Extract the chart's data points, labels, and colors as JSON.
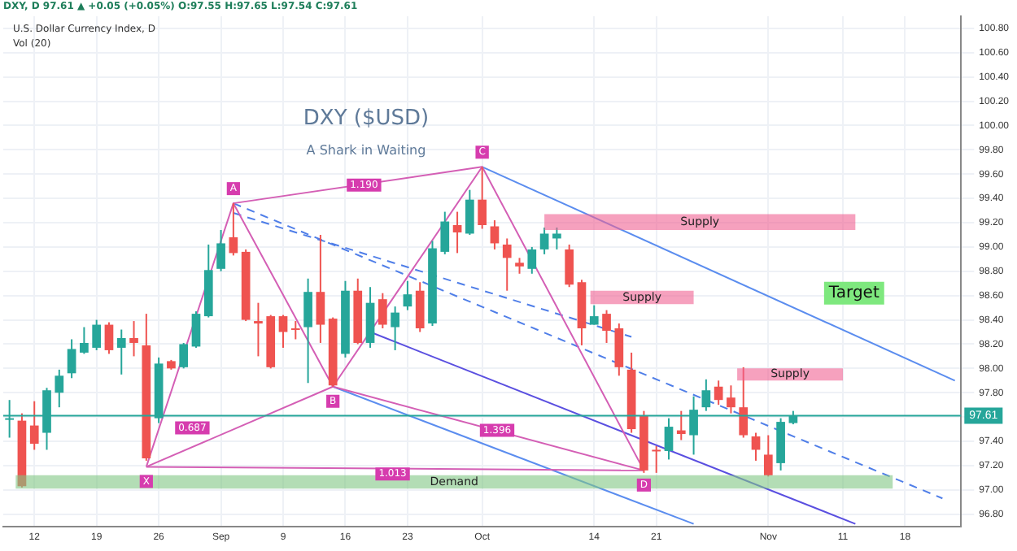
{
  "chart_data": {
    "type": "candlestick",
    "title": "DXY ($USD)",
    "subtitle": "A Shark in Waiting",
    "categories": [
      null,
      null,
      "12",
      null,
      null,
      null,
      null,
      "19",
      null,
      null,
      null,
      null,
      "26",
      null,
      null,
      null,
      null,
      "Sep",
      null,
      null,
      null,
      null,
      "9",
      null,
      null,
      null,
      null,
      "16",
      null,
      null,
      null,
      null,
      "23",
      null,
      null,
      null,
      null,
      null,
      "Oct",
      null,
      null,
      null,
      null,
      null,
      null,
      null,
      null,
      "14",
      null,
      null,
      null,
      null,
      "21",
      null,
      null,
      null,
      null,
      null,
      null,
      null,
      null,
      "Nov",
      null,
      null,
      null,
      null,
      null,
      "11",
      null,
      null,
      null,
      null,
      "18",
      null,
      null,
      null,
      null
    ],
    "ohlc": [
      [
        97.58,
        97.74,
        97.43,
        97.59
      ],
      [
        97.57,
        97.63,
        97.02,
        97.03
      ],
      [
        97.53,
        97.73,
        97.33,
        97.38
      ],
      [
        97.47,
        97.84,
        97.33,
        97.82
      ],
      [
        97.8,
        97.99,
        97.68,
        97.94
      ],
      [
        97.96,
        98.24,
        97.92,
        98.16
      ],
      [
        98.13,
        98.34,
        98.12,
        98.21
      ],
      [
        98.17,
        98.4,
        98.15,
        98.36
      ],
      [
        98.36,
        98.38,
        98.12,
        98.15
      ],
      [
        98.17,
        98.32,
        97.95,
        98.25
      ],
      [
        98.25,
        98.39,
        98.1,
        98.21
      ],
      [
        98.19,
        98.45,
        97.24,
        97.26
      ],
      [
        97.59,
        98.09,
        97.55,
        98.04
      ],
      [
        98.06,
        98.07,
        97.99,
        98.0
      ],
      [
        98.01,
        98.21,
        98.0,
        98.2
      ],
      [
        98.18,
        98.47,
        98.17,
        98.45
      ],
      [
        98.43,
        99.02,
        98.42,
        98.81
      ],
      [
        98.82,
        99.14,
        98.8,
        99.03
      ],
      [
        99.08,
        99.36,
        98.93,
        98.95
      ],
      [
        98.96,
        98.98,
        98.39,
        98.4
      ],
      [
        98.39,
        98.54,
        98.1,
        98.37
      ],
      [
        98.43,
        98.44,
        98.0,
        98.01
      ],
      [
        98.43,
        98.44,
        98.17,
        98.3
      ],
      [
        98.33,
        98.39,
        98.24,
        98.32
      ],
      [
        98.34,
        98.74,
        97.88,
        98.63
      ],
      [
        98.63,
        99.1,
        98.21,
        98.36
      ],
      [
        98.41,
        98.42,
        97.85,
        97.86
      ],
      [
        98.12,
        98.72,
        98.09,
        98.64
      ],
      [
        98.64,
        98.74,
        98.2,
        98.21
      ],
      [
        98.21,
        98.67,
        98.17,
        98.54
      ],
      [
        98.57,
        98.62,
        98.33,
        98.36
      ],
      [
        98.34,
        98.51,
        98.15,
        98.46
      ],
      [
        98.51,
        98.72,
        98.48,
        98.61
      ],
      [
        98.64,
        98.71,
        98.3,
        98.33
      ],
      [
        98.37,
        99.05,
        98.35,
        98.99
      ],
      [
        98.96,
        99.29,
        98.94,
        99.21
      ],
      [
        99.18,
        99.29,
        98.95,
        99.12
      ],
      [
        99.11,
        99.47,
        99.1,
        99.39
      ],
      [
        99.39,
        99.66,
        99.15,
        99.18
      ],
      [
        99.17,
        99.22,
        98.98,
        99.03
      ],
      [
        99.02,
        99.07,
        98.64,
        98.91
      ],
      [
        98.87,
        98.91,
        98.78,
        98.84
      ],
      [
        98.82,
        99.0,
        98.78,
        98.98
      ],
      [
        98.98,
        99.16,
        98.94,
        99.11
      ],
      [
        99.07,
        99.16,
        98.98,
        99.11
      ],
      [
        98.98,
        99.02,
        98.67,
        98.69
      ],
      [
        98.71,
        98.73,
        98.19,
        98.33
      ],
      [
        98.36,
        98.52,
        98.36,
        98.43
      ],
      [
        98.45,
        98.48,
        98.21,
        98.31
      ],
      [
        98.33,
        98.37,
        97.94,
        98.01
      ],
      [
        97.99,
        98.13,
        97.47,
        97.5
      ],
      [
        97.61,
        97.65,
        97.14,
        97.16
      ],
      [
        97.33,
        97.36,
        97.14,
        97.32
      ],
      [
        97.32,
        97.59,
        97.25,
        97.52
      ],
      [
        97.49,
        97.65,
        97.41,
        97.46
      ],
      [
        97.45,
        97.77,
        97.29,
        97.66
      ],
      [
        97.68,
        97.91,
        97.65,
        97.82
      ],
      [
        97.85,
        97.9,
        97.7,
        97.74
      ],
      [
        97.76,
        97.86,
        97.63,
        97.68
      ],
      [
        97.68,
        98.01,
        97.43,
        97.45
      ],
      [
        97.44,
        97.47,
        97.24,
        97.33
      ],
      [
        97.29,
        97.45,
        97.11,
        97.12
      ],
      [
        97.22,
        97.59,
        97.16,
        97.56
      ],
      [
        97.55,
        97.65,
        97.54,
        97.61
      ],
      null,
      null,
      null,
      null,
      null,
      null,
      null,
      null,
      null,
      null,
      null,
      null,
      null
    ],
    "series": [
      {
        "type": "line",
        "color": "#d45fb5",
        "values": [
          null,
          null,
          null,
          null,
          null,
          null,
          null,
          null,
          null,
          null,
          null,
          97.19,
          null,
          null,
          null,
          null,
          null,
          null,
          99.36,
          null,
          null,
          null,
          null,
          null,
          null,
          null,
          97.85,
          null,
          null,
          null,
          null,
          null,
          null,
          null,
          null,
          null,
          null,
          null,
          99.66,
          null,
          null,
          null,
          null,
          null,
          null,
          null,
          null,
          null,
          null,
          null,
          null,
          97.16,
          null,
          null,
          null,
          null,
          null,
          null,
          null,
          null,
          null,
          null,
          null,
          null,
          null,
          null,
          null,
          null,
          null,
          null,
          null,
          null,
          null,
          null,
          null,
          null,
          null
        ]
      },
      {
        "type": "line",
        "color": "#d45fb5",
        "values": [
          null,
          null,
          null,
          null,
          null,
          null,
          null,
          null,
          null,
          null,
          null,
          97.19,
          null,
          null,
          null,
          null,
          null,
          null,
          null,
          null,
          null,
          null,
          null,
          null,
          null,
          null,
          97.85,
          null,
          null,
          null,
          null,
          null,
          null,
          null,
          null,
          null,
          null,
          null,
          null,
          null,
          null,
          null,
          null,
          null,
          null,
          null,
          null,
          null,
          null,
          null,
          null,
          null,
          null,
          null,
          null,
          null,
          null,
          null,
          null,
          null,
          null,
          null,
          null,
          null,
          null,
          null,
          null,
          null,
          null,
          null,
          null,
          null,
          null,
          null,
          null,
          null,
          null
        ]
      },
      {
        "type": "line",
        "color": "#d45fb5",
        "values": [
          null,
          null,
          null,
          null,
          null,
          null,
          null,
          null,
          null,
          null,
          null,
          null,
          null,
          null,
          null,
          null,
          null,
          null,
          99.36,
          null,
          null,
          null,
          null,
          null,
          null,
          null,
          null,
          null,
          null,
          null,
          null,
          null,
          null,
          null,
          null,
          null,
          null,
          null,
          99.66,
          null,
          null,
          null,
          null,
          null,
          null,
          null,
          null,
          null,
          null,
          null,
          null,
          null,
          null,
          null,
          null,
          null,
          null,
          null,
          null,
          null,
          null,
          null,
          null,
          null,
          null,
          null,
          null,
          null,
          null,
          null,
          null,
          null,
          null,
          null,
          null,
          null,
          null
        ]
      },
      {
        "type": "line",
        "color": "#d45fb5",
        "values": [
          null,
          null,
          null,
          null,
          null,
          null,
          null,
          null,
          null,
          null,
          null,
          null,
          null,
          null,
          null,
          null,
          null,
          null,
          null,
          null,
          null,
          null,
          null,
          null,
          null,
          null,
          97.85,
          null,
          null,
          null,
          null,
          null,
          null,
          null,
          null,
          null,
          null,
          null,
          null,
          null,
          null,
          null,
          null,
          null,
          null,
          null,
          null,
          null,
          null,
          null,
          null,
          97.16,
          null,
          null,
          null,
          null,
          null,
          null,
          null,
          null,
          null,
          null,
          null,
          null,
          null,
          null,
          null,
          null,
          null,
          null,
          null,
          null,
          null,
          null,
          null,
          null,
          null
        ]
      },
      {
        "type": "line",
        "color": "#d45fb5",
        "values": [
          null,
          null,
          null,
          null,
          null,
          null,
          null,
          null,
          null,
          null,
          null,
          97.19,
          null,
          null,
          null,
          null,
          null,
          null,
          null,
          null,
          null,
          null,
          null,
          null,
          null,
          null,
          null,
          null,
          null,
          null,
          null,
          null,
          null,
          null,
          null,
          null,
          null,
          null,
          null,
          null,
          null,
          null,
          null,
          null,
          null,
          null,
          null,
          null,
          null,
          null,
          null,
          97.16,
          null,
          null,
          null,
          null,
          null,
          null,
          null,
          null,
          null,
          null,
          null,
          null,
          null,
          null,
          null,
          null,
          null,
          null,
          null,
          null,
          null,
          null,
          null,
          null,
          null
        ]
      },
      {
        "type": "line",
        "color": "#5b8def",
        "values": [
          null,
          null,
          null,
          null,
          null,
          null,
          null,
          null,
          null,
          null,
          null,
          null,
          null,
          null,
          null,
          null,
          null,
          null,
          null,
          null,
          null,
          null,
          null,
          null,
          null,
          null,
          null,
          null,
          null,
          null,
          null,
          null,
          null,
          null,
          null,
          null,
          null,
          null,
          99.66,
          null,
          null,
          null,
          null,
          null,
          null,
          null,
          null,
          null,
          null,
          null,
          null,
          null,
          null,
          null,
          null,
          null,
          null,
          null,
          null,
          null,
          null,
          null,
          null,
          null,
          null,
          null,
          null,
          null,
          null,
          null,
          null,
          null,
          null,
          null,
          null,
          null,
          97.9
        ]
      },
      {
        "type": "line",
        "color": "#5a4fe0",
        "values": [
          null,
          null,
          null,
          null,
          null,
          null,
          null,
          null,
          null,
          null,
          null,
          null,
          null,
          null,
          null,
          null,
          null,
          null,
          null,
          null,
          null,
          null,
          null,
          null,
          null,
          null,
          null,
          null,
          null,
          98.3,
          null,
          null,
          null,
          null,
          null,
          null,
          null,
          null,
          null,
          null,
          null,
          null,
          null,
          null,
          null,
          null,
          null,
          null,
          null,
          null,
          null,
          null,
          null,
          null,
          null,
          null,
          null,
          null,
          null,
          null,
          null,
          null,
          null,
          null,
          null,
          null,
          null,
          null,
          96.72,
          null,
          null,
          null,
          null,
          null,
          null,
          null,
          null
        ]
      },
      {
        "type": "line",
        "color": "#5b8def",
        "values": [
          null,
          null,
          null,
          null,
          null,
          null,
          null,
          null,
          null,
          null,
          null,
          null,
          null,
          null,
          null,
          null,
          null,
          null,
          null,
          null,
          null,
          null,
          null,
          null,
          null,
          null,
          97.85,
          null,
          null,
          null,
          null,
          null,
          null,
          null,
          null,
          null,
          null,
          null,
          null,
          null,
          null,
          null,
          null,
          null,
          null,
          null,
          null,
          null,
          null,
          null,
          null,
          null,
          null,
          null,
          null,
          96.72,
          null,
          null,
          null,
          null,
          null,
          null,
          null,
          null,
          null,
          null,
          null,
          null,
          null,
          null,
          null,
          null,
          null,
          null,
          null,
          null,
          null
        ]
      },
      {
        "type": "line",
        "color": "#4f7ee8",
        "line_style": "dashed",
        "values": [
          null,
          null,
          null,
          null,
          null,
          null,
          null,
          null,
          null,
          null,
          null,
          null,
          null,
          null,
          null,
          null,
          null,
          null,
          99.36,
          null,
          null,
          null,
          null,
          null,
          null,
          null,
          null,
          null,
          null,
          null,
          null,
          null,
          null,
          null,
          null,
          null,
          null,
          null,
          null,
          null,
          null,
          null,
          null,
          null,
          null,
          null,
          null,
          null,
          null,
          null,
          null,
          null,
          null,
          null,
          null,
          null,
          null,
          null,
          null,
          null,
          null,
          null,
          null,
          null,
          null,
          null,
          null,
          null,
          null,
          null,
          null,
          null,
          null,
          null,
          null,
          96.93,
          null
        ]
      },
      {
        "type": "line",
        "color": "#4f7ee8",
        "line_style": "dashed",
        "values": [
          null,
          null,
          null,
          null,
          null,
          null,
          null,
          null,
          null,
          null,
          null,
          null,
          null,
          null,
          null,
          null,
          null,
          null,
          99.28,
          null,
          null,
          null,
          null,
          null,
          null,
          null,
          null,
          null,
          null,
          null,
          null,
          null,
          null,
          null,
          null,
          null,
          null,
          null,
          null,
          null,
          null,
          null,
          null,
          null,
          null,
          null,
          null,
          null,
          null,
          null,
          98.26,
          null,
          null,
          null,
          null,
          null,
          null,
          null,
          null,
          null,
          null,
          null,
          null,
          null,
          null,
          null,
          null,
          null,
          null,
          null,
          null,
          null,
          null,
          null,
          null,
          null,
          null
        ]
      }
    ],
    "ylim": [
      96.7,
      100.9
    ],
    "yticks": [
      {
        "value": 96.8,
        "label": "96.80"
      },
      {
        "value": 97,
        "label": "97.00"
      },
      {
        "value": 97.2,
        "label": "97.20"
      },
      {
        "value": 97.4,
        "label": "97.40"
      },
      {
        "value": 97.6,
        "label": null
      },
      {
        "value": 97.8,
        "label": "97.80"
      },
      {
        "value": 98,
        "label": "98.00"
      },
      {
        "value": 98.2,
        "label": "98.20"
      },
      {
        "value": 98.4,
        "label": "98.40"
      },
      {
        "value": 98.6,
        "label": "98.60"
      },
      {
        "value": 98.8,
        "label": "98.80"
      },
      {
        "value": 99,
        "label": "99.00"
      },
      {
        "value": 99.2,
        "label": "99.20"
      },
      {
        "value": 99.4,
        "label": "99.40"
      },
      {
        "value": 99.6,
        "label": "99.60"
      },
      {
        "value": 99.8,
        "label": "99.80"
      },
      {
        "value": 100,
        "label": "100.00"
      },
      {
        "value": 100.2,
        "label": "100.20"
      },
      {
        "value": 100.4,
        "label": "100.40"
      },
      {
        "value": 100.6,
        "label": "100.60"
      },
      {
        "value": 100.8,
        "label": "100.80"
      }
    ],
    "ref_lines": [
      {
        "axis": "y",
        "value": 97.61,
        "label": "97.61",
        "color": "#26a69a"
      }
    ],
    "grid": true,
    "annotations": [
      "DXY, D 97.61 ▲ +0.05 (+0.05%) O:97.55 H:97.65 L:97.54 C:97.61",
      "U.S. Dollar Currency Index, D",
      "Vol (20)",
      {
        "text": "X",
        "y": 97.19
      },
      {
        "text": "A",
        "y": 99.36
      },
      {
        "text": "B",
        "y": 97.85
      },
      {
        "text": "C",
        "y": 99.66
      },
      {
        "text": "D",
        "y": 97.16
      },
      {
        "text": "1.190",
        "y": 99.51
      },
      {
        "text": "0.687",
        "y": 97.51
      },
      {
        "text": "1.396",
        "y": 97.49
      },
      {
        "text": "1.013",
        "y": 97.13
      },
      "Target"
    ],
    "bands": [
      {
        "axis": "y",
        "from": 97.01,
        "to": 97.12,
        "label": "Demand",
        "color": "#81c784"
      },
      {
        "axis": "y",
        "from": 99.14,
        "to": 99.27,
        "label": "Supply",
        "color": "#f06292"
      },
      {
        "axis": "y",
        "from": 98.53,
        "to": 98.64,
        "label": "Supply",
        "color": "#f06292"
      },
      {
        "axis": "y",
        "from": 97.9,
        "to": 98.0,
        "label": "Supply",
        "color": "#f06292"
      }
    ]
  }
}
